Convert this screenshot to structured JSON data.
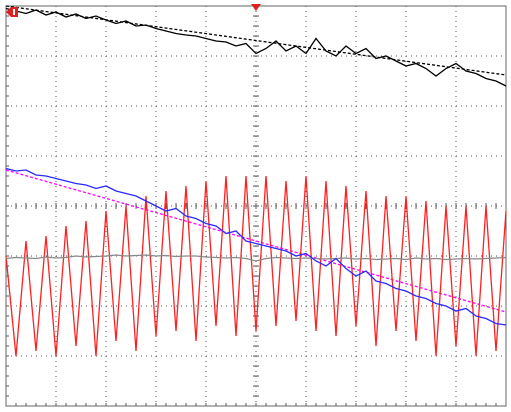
{
  "chart_data": {
    "type": "line",
    "x": [
      0,
      0.2,
      0.4,
      0.6,
      0.8,
      1,
      1.2,
      1.4,
      1.6,
      1.8,
      2,
      2.2,
      2.4,
      2.6,
      2.8,
      3,
      3.2,
      3.4,
      3.6,
      3.8,
      4,
      4.2,
      4.4,
      4.6,
      4.8,
      5,
      5.2,
      5.4,
      5.6,
      5.8,
      6,
      6.2,
      6.4,
      6.6,
      6.8,
      7,
      7.2,
      7.4,
      7.6,
      7.8,
      8,
      8.2,
      8.4,
      8.6,
      8.8,
      9,
      9.2,
      9.4,
      9.6,
      9.8,
      10
    ],
    "xlim": [
      0,
      10
    ],
    "ylim": [
      0,
      8
    ],
    "series": [
      {
        "color": "#ff2020",
        "values": [
          3.0,
          1.0,
          3.3,
          1.1,
          3.4,
          1.0,
          3.6,
          1.2,
          3.7,
          1.0,
          3.9,
          1.3,
          4.0,
          1.1,
          4.2,
          1.4,
          4.3,
          1.5,
          4.4,
          1.3,
          4.5,
          1.6,
          4.6,
          1.4,
          4.6,
          1.5,
          4.6,
          1.6,
          4.5,
          1.7,
          4.6,
          1.5,
          4.5,
          1.4,
          4.4,
          1.6,
          4.3,
          1.2,
          4.2,
          1.5,
          4.2,
          1.3,
          4.1,
          1.0,
          4.0,
          1.2,
          4.0,
          1.0,
          4.0,
          1.1,
          3.9
        ]
      },
      {
        "color": "#000000",
        "values": [
          7.95,
          7.9,
          7.85,
          7.92,
          7.82,
          7.88,
          7.78,
          7.84,
          7.75,
          7.8,
          7.72,
          7.65,
          7.7,
          7.6,
          7.62,
          7.55,
          7.5,
          7.45,
          7.42,
          7.4,
          7.35,
          7.3,
          7.28,
          7.2,
          7.25,
          7.05,
          7.15,
          7.3,
          7.1,
          7.2,
          7.05,
          7.35,
          7.1,
          7.0,
          7.2,
          7.05,
          7.15,
          6.95,
          7.0,
          6.9,
          6.8,
          6.85,
          6.75,
          6.6,
          6.75,
          6.85,
          6.7,
          6.65,
          6.55,
          6.5,
          6.4
        ]
      },
      {
        "color": "#888888",
        "values": [
          2.95,
          2.97,
          2.96,
          2.95,
          2.98,
          2.96,
          2.97,
          3.0,
          2.98,
          2.99,
          3.0,
          3.02,
          3.0,
          3.01,
          3.02,
          3.0,
          3.01,
          2.99,
          3.0,
          3.0,
          2.98,
          2.97,
          2.96,
          2.97,
          2.95,
          2.9,
          2.95,
          2.97,
          2.96,
          2.95,
          2.96,
          2.95,
          2.94,
          2.95,
          2.96,
          2.94,
          2.95,
          2.93,
          2.94,
          2.95,
          2.93,
          2.96,
          2.94,
          2.95,
          2.93,
          2.94,
          2.95,
          2.94,
          2.95,
          2.96,
          2.97
        ]
      },
      {
        "color": "#2a2aff",
        "values": [
          4.75,
          4.7,
          4.72,
          4.62,
          4.6,
          4.55,
          4.5,
          4.45,
          4.42,
          4.35,
          4.4,
          4.3,
          4.25,
          4.2,
          4.1,
          4.0,
          3.9,
          3.95,
          3.8,
          3.75,
          3.65,
          3.6,
          3.45,
          3.5,
          3.3,
          3.25,
          3.2,
          3.15,
          3.1,
          3.0,
          3.05,
          2.9,
          2.8,
          2.95,
          2.75,
          2.6,
          2.7,
          2.5,
          2.45,
          2.35,
          2.3,
          2.2,
          2.15,
          2.05,
          2.0,
          1.9,
          1.95,
          1.8,
          1.75,
          1.65,
          1.62
        ]
      }
    ],
    "trend_lines": [
      {
        "color": "#000000",
        "x": [
          0,
          10
        ],
        "values": [
          8.0,
          6.62
        ]
      },
      {
        "color": "#ff00ff",
        "x": [
          0,
          10
        ],
        "values": [
          4.72,
          1.88
        ]
      }
    ]
  }
}
